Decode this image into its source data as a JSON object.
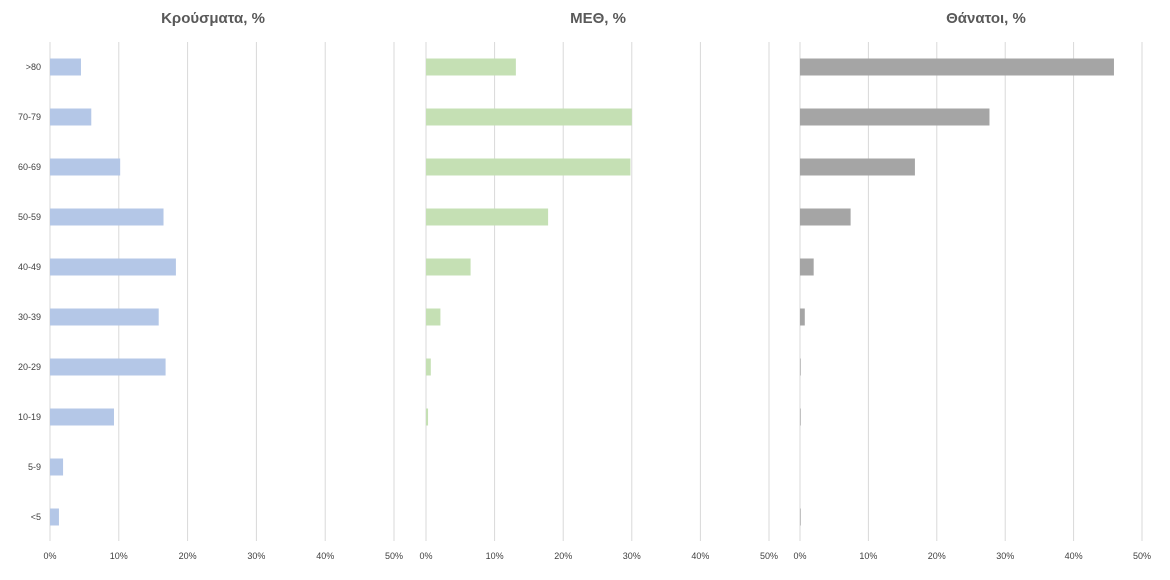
{
  "chart_data": [
    {
      "type": "bar",
      "orientation": "horizontal",
      "title": "Κρούσματα, %",
      "categories": [
        ">80",
        "70-79",
        "60-69",
        "50-59",
        "40-49",
        "30-39",
        "20-29",
        "10-19",
        "5-9",
        "<5"
      ],
      "values": [
        4.5,
        6.0,
        10.2,
        16.5,
        18.3,
        15.8,
        16.8,
        9.3,
        1.9,
        1.3
      ],
      "xlim": [
        0,
        50
      ],
      "ticks": [
        "0%",
        "10%",
        "20%",
        "30%",
        "40%",
        "50%"
      ],
      "grid": true,
      "color": "#b4c7e7"
    },
    {
      "type": "bar",
      "orientation": "horizontal",
      "title": "ΜΕΘ, %",
      "categories": [
        ">80",
        "70-79",
        "60-69",
        "50-59",
        "40-49",
        "30-39",
        "20-29",
        "10-19",
        "5-9",
        "<5"
      ],
      "values": [
        13.1,
        30.0,
        29.8,
        17.8,
        6.5,
        2.1,
        0.7,
        0.3,
        0,
        0
      ],
      "xlim": [
        0,
        50
      ],
      "ticks": [
        "0%",
        "10%",
        "20%",
        "30%",
        "40%",
        "50%"
      ],
      "grid": true,
      "color": "#c5e0b4"
    },
    {
      "type": "bar",
      "orientation": "horizontal",
      "title": "Θάνατοι, %",
      "categories": [
        ">80",
        "70-79",
        "60-69",
        "50-59",
        "40-49",
        "30-39",
        "20-29",
        "10-19",
        "5-9",
        "<5"
      ],
      "values": [
        45.9,
        27.7,
        16.8,
        7.4,
        2.0,
        0.7,
        0.1,
        0.1,
        0,
        0.1
      ],
      "xlim": [
        0,
        50
      ],
      "ticks": [
        "0%",
        "10%",
        "20%",
        "30%",
        "40%",
        "50%"
      ],
      "grid": true,
      "color": "#a5a5a5"
    }
  ]
}
